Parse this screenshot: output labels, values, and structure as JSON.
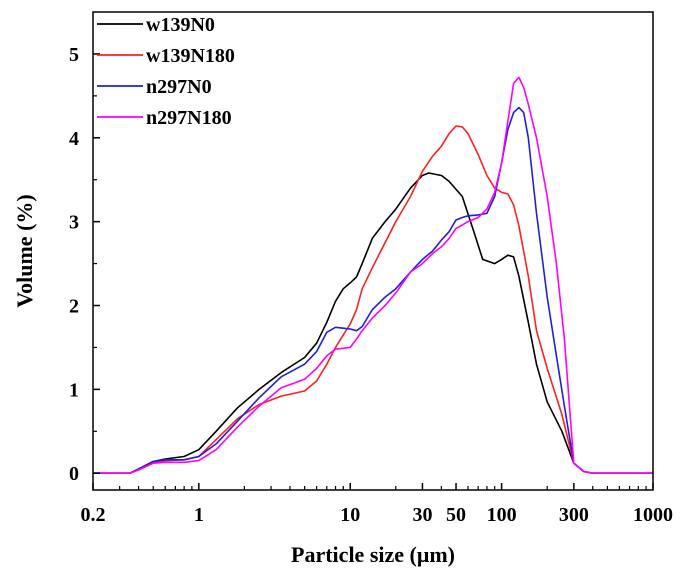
{
  "chart_data": {
    "type": "line",
    "xlabel": "Particle size (μm)",
    "ylabel": "Volume (%)",
    "x_scale": "log",
    "xlim": [
      0.2,
      1000
    ],
    "ylim": [
      -0.2,
      5.5
    ],
    "x_ticks": [
      0.2,
      1,
      10,
      30,
      50,
      100,
      300,
      1000
    ],
    "x_tick_labels": [
      "0.2",
      "1",
      "10",
      "30",
      "50",
      "100",
      "300",
      "1000"
    ],
    "y_ticks": [
      0,
      1,
      2,
      3,
      4,
      5
    ],
    "y_tick_labels": [
      "0",
      "1",
      "2",
      "3",
      "4",
      "5"
    ],
    "grid": false,
    "legend_position": "top-left",
    "series": [
      {
        "name": "w139N0",
        "color": "#000000",
        "x": [
          0.2,
          0.35,
          0.4,
          0.5,
          0.6,
          0.8,
          1,
          1.3,
          1.8,
          2.5,
          3.5,
          5,
          6,
          7,
          8,
          9,
          10,
          11,
          12,
          14,
          17,
          20,
          25,
          30,
          33,
          40,
          45,
          55,
          65,
          75,
          90,
          100,
          110,
          120,
          130,
          150,
          170,
          200,
          250,
          300,
          350,
          400,
          500,
          1000
        ],
        "y": [
          0,
          0,
          0.05,
          0.14,
          0.17,
          0.2,
          0.28,
          0.5,
          0.78,
          1.0,
          1.2,
          1.38,
          1.55,
          1.8,
          2.05,
          2.2,
          2.27,
          2.34,
          2.5,
          2.8,
          3.0,
          3.15,
          3.4,
          3.55,
          3.58,
          3.55,
          3.48,
          3.3,
          2.9,
          2.55,
          2.5,
          2.55,
          2.6,
          2.58,
          2.35,
          1.8,
          1.3,
          0.85,
          0.5,
          0.12,
          0.02,
          0,
          0,
          0
        ]
      },
      {
        "name": "w139N180",
        "color": "#ff2020",
        "x": [
          0.2,
          0.35,
          0.4,
          0.5,
          0.6,
          0.8,
          1,
          1.3,
          1.8,
          2.5,
          3.5,
          5,
          6,
          7,
          8,
          9,
          10,
          11,
          12,
          14,
          17,
          20,
          25,
          30,
          35,
          40,
          45,
          50,
          55,
          60,
          70,
          80,
          90,
          100,
          110,
          120,
          130,
          150,
          170,
          200,
          250,
          300,
          350,
          400,
          500,
          1000
        ],
        "y": [
          0,
          0,
          0.04,
          0.12,
          0.15,
          0.16,
          0.2,
          0.4,
          0.65,
          0.82,
          0.92,
          0.98,
          1.1,
          1.3,
          1.5,
          1.65,
          1.78,
          1.95,
          2.2,
          2.45,
          2.75,
          3.0,
          3.3,
          3.6,
          3.78,
          3.9,
          4.05,
          4.14,
          4.13,
          4.05,
          3.8,
          3.55,
          3.4,
          3.35,
          3.33,
          3.2,
          2.95,
          2.35,
          1.7,
          1.25,
          0.7,
          0.12,
          0.02,
          0,
          0,
          0
        ]
      },
      {
        "name": "n297N0",
        "color": "#1f1fdd",
        "x": [
          0.2,
          0.35,
          0.4,
          0.5,
          0.6,
          0.8,
          1,
          1.3,
          1.8,
          2.5,
          3.5,
          5,
          6,
          7,
          8,
          9,
          10,
          11,
          12,
          14,
          17,
          20,
          25,
          30,
          35,
          40,
          45,
          50,
          55,
          60,
          70,
          80,
          90,
          100,
          110,
          120,
          130,
          140,
          150,
          170,
          200,
          230,
          260,
          300,
          350,
          400,
          500,
          1000
        ],
        "y": [
          0,
          0,
          0.05,
          0.14,
          0.16,
          0.16,
          0.2,
          0.35,
          0.62,
          0.9,
          1.15,
          1.3,
          1.45,
          1.68,
          1.74,
          1.73,
          1.72,
          1.7,
          1.75,
          1.95,
          2.1,
          2.2,
          2.4,
          2.55,
          2.65,
          2.78,
          2.88,
          3.02,
          3.05,
          3.07,
          3.08,
          3.1,
          3.3,
          3.7,
          4.1,
          4.3,
          4.36,
          4.3,
          4.0,
          3.1,
          2.1,
          1.4,
          0.8,
          0.12,
          0.02,
          0,
          0,
          0
        ]
      },
      {
        "name": "n297N180",
        "color": "#ff00ff",
        "x": [
          0.2,
          0.35,
          0.4,
          0.5,
          0.6,
          0.8,
          1,
          1.3,
          1.8,
          2.5,
          3.5,
          5,
          6,
          7,
          8,
          9,
          10,
          11,
          12,
          14,
          17,
          20,
          25,
          30,
          35,
          40,
          45,
          50,
          55,
          60,
          70,
          80,
          90,
          100,
          110,
          120,
          130,
          140,
          150,
          170,
          200,
          230,
          260,
          300,
          350,
          400,
          500,
          1000
        ],
        "y": [
          0,
          0,
          0.04,
          0.12,
          0.13,
          0.13,
          0.15,
          0.28,
          0.55,
          0.8,
          1.02,
          1.12,
          1.25,
          1.4,
          1.48,
          1.49,
          1.5,
          1.6,
          1.7,
          1.85,
          2.0,
          2.15,
          2.4,
          2.5,
          2.62,
          2.7,
          2.8,
          2.92,
          2.96,
          3.0,
          3.05,
          3.15,
          3.35,
          3.7,
          4.2,
          4.65,
          4.72,
          4.6,
          4.4,
          4.0,
          3.3,
          2.5,
          1.6,
          0.12,
          0.02,
          0,
          0,
          0
        ]
      }
    ]
  }
}
